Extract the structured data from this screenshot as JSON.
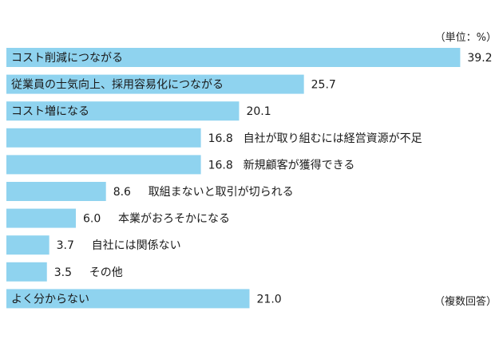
{
  "unit_note": "（単位：%）",
  "footnote": "（複数回答）",
  "chart_data": {
    "type": "bar",
    "orientation": "horizontal",
    "xlim": [
      0,
      40
    ],
    "grid": false,
    "unit": "%",
    "categories": [
      "コスト削減につながる",
      "従業員の士気向上、採用容易化につながる",
      "コスト増になる",
      "自社が取り組むには経営資源が不足",
      "新規顧客が獲得できる",
      "取組まないと取引が切られる",
      "本業がおろそかになる",
      "自社には関係ない",
      "その他",
      "よく分からない"
    ],
    "values": [
      39.2,
      25.7,
      20.1,
      16.8,
      16.8,
      8.6,
      6.0,
      3.7,
      3.5,
      21.0
    ],
    "value_labels": [
      "39.2",
      "25.7",
      "20.1",
      "16.8",
      "16.8",
      "8.6",
      "6.0",
      "3.7",
      "3.5",
      "21.0"
    ],
    "label_inside": [
      true,
      true,
      true,
      false,
      false,
      false,
      false,
      false,
      false,
      true
    ],
    "colors": {
      "bar": "#8fd3ef"
    }
  }
}
